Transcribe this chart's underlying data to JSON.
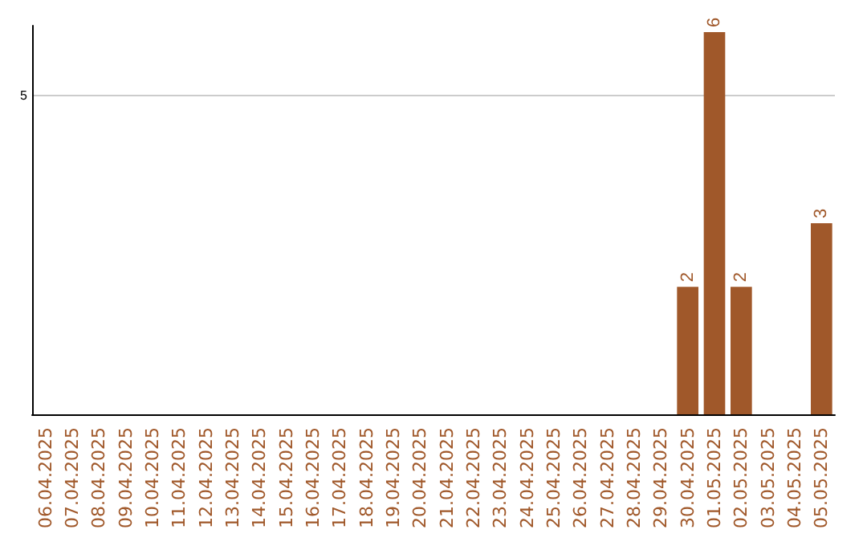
{
  "chart_data": {
    "type": "bar",
    "categories": [
      "06.04.2025",
      "07.04.2025",
      "08.04.2025",
      "09.04.2025",
      "10.04.2025",
      "11.04.2025",
      "12.04.2025",
      "13.04.2025",
      "14.04.2025",
      "15.04.2025",
      "16.04.2025",
      "17.04.2025",
      "18.04.2025",
      "19.04.2025",
      "20.04.2025",
      "21.04.2025",
      "22.04.2025",
      "23.04.2025",
      "24.04.2025",
      "25.04.2025",
      "26.04.2025",
      "27.04.2025",
      "28.04.2025",
      "29.04.2025",
      "30.04.2025",
      "01.05.2025",
      "02.05.2025",
      "03.05.2025",
      "04.05.2025",
      "05.05.2025"
    ],
    "values": [
      null,
      null,
      null,
      null,
      null,
      null,
      null,
      null,
      null,
      null,
      null,
      null,
      null,
      null,
      null,
      null,
      null,
      null,
      null,
      null,
      null,
      null,
      null,
      null,
      2,
      6,
      2,
      null,
      null,
      3
    ],
    "color": "#a0582a",
    "ylim": [
      0,
      6.1
    ],
    "yticks": [
      5
    ],
    "grid": "y",
    "data_labels": true
  }
}
